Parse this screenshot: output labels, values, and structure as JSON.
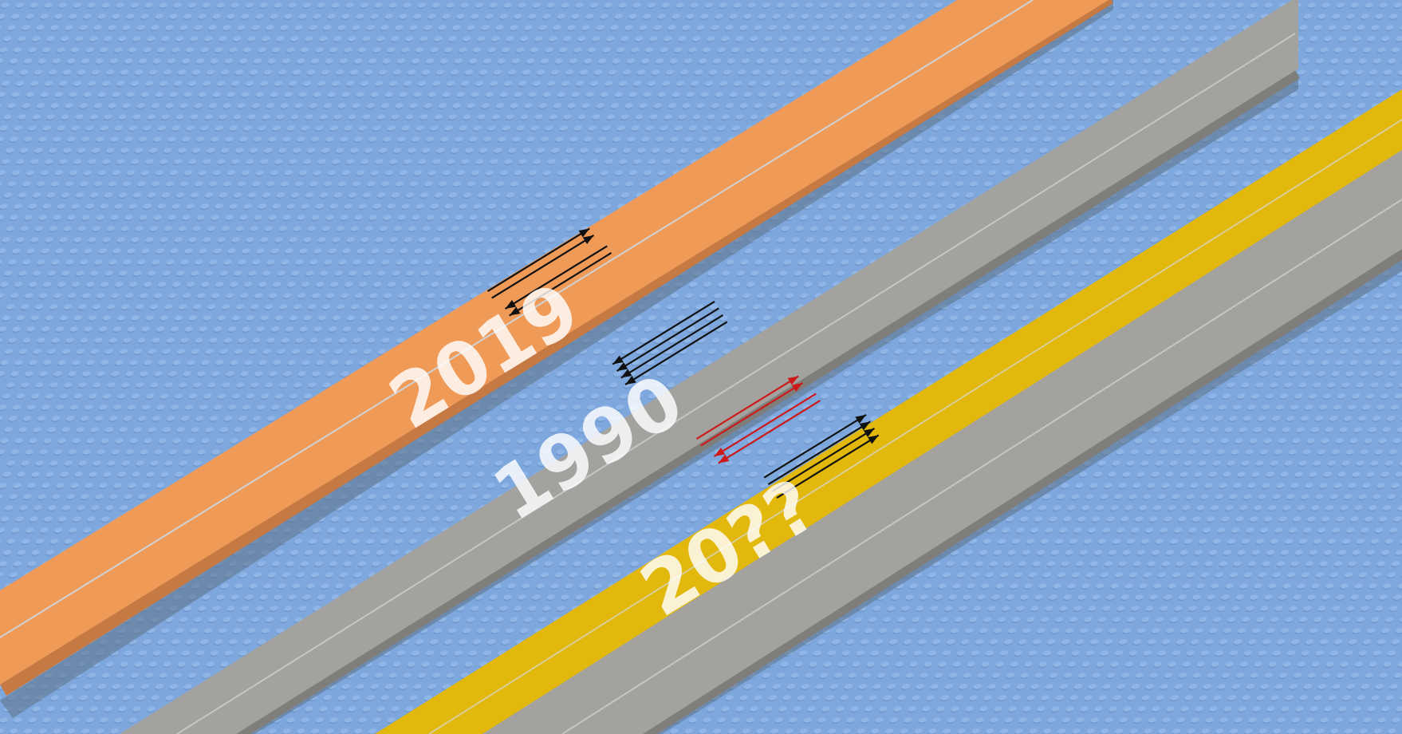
{
  "scene": {
    "background": "#7ea8dd",
    "roads": [
      {
        "id": "road-2019",
        "label": "2019",
        "lanes": [
          {
            "color": "#f09a58",
            "role": "full-width"
          }
        ],
        "arrows": [
          {
            "direction": "forward",
            "count": 2,
            "color": "#111111"
          },
          {
            "direction": "backward",
            "count": 2,
            "color": "#111111"
          }
        ]
      },
      {
        "id": "road-1990",
        "label": "1990",
        "lanes": [
          {
            "color": "#a3a29e",
            "role": "full-width"
          }
        ],
        "arrows": [
          {
            "direction": "backward",
            "count": 4,
            "color": "#111111"
          }
        ]
      },
      {
        "id": "road-20xx",
        "label": "20??",
        "lanes": [
          {
            "color": "#e2b80d",
            "role": "left-lane"
          },
          {
            "color": "#a3a29e",
            "role": "right-lane"
          }
        ],
        "arrows": [
          {
            "direction": "forward",
            "count": 2,
            "color": "#cc1a1a"
          },
          {
            "direction": "backward",
            "count": 2,
            "color": "#cc1a1a"
          },
          {
            "direction": "forward",
            "count": 4,
            "color": "#111111"
          }
        ]
      }
    ]
  }
}
